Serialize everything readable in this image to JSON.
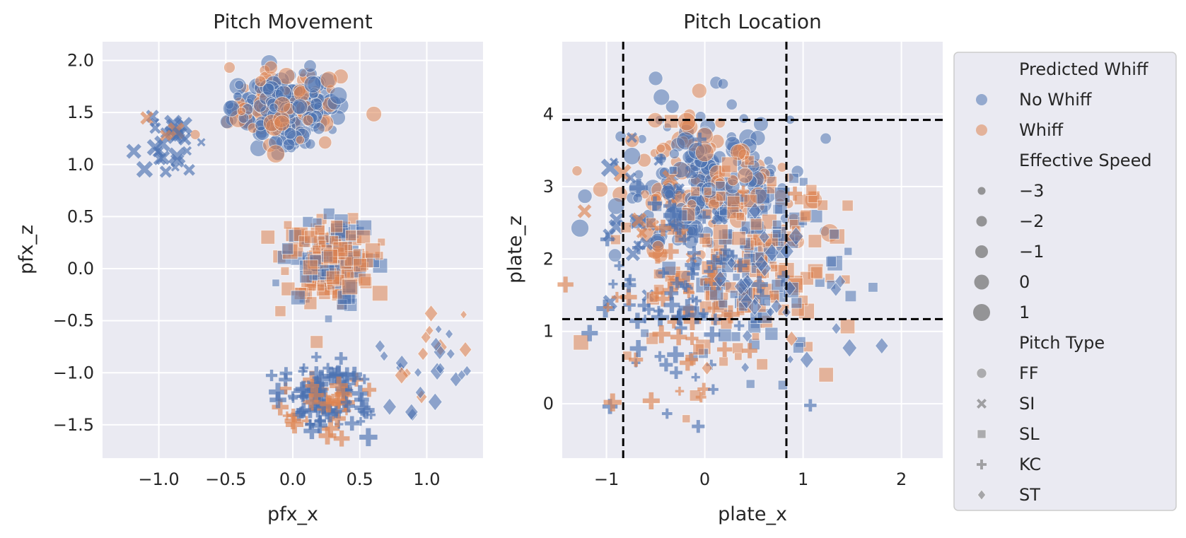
{
  "chart_data": [
    {
      "type": "scatter",
      "title": "Pitch Movement",
      "xlabel": "pfx_x",
      "ylabel": "pfx_z",
      "xlim": [
        -1.42,
        1.42
      ],
      "ylim": [
        -1.82,
        2.18
      ],
      "xticks": [
        -1.0,
        -0.5,
        0.0,
        0.5,
        1.0
      ],
      "xtick_labels": [
        "−1.0",
        "−0.5",
        "0.0",
        "0.5",
        "1.0"
      ],
      "yticks": [
        -1.5,
        -1.0,
        -0.5,
        0.0,
        0.5,
        1.0,
        1.5,
        2.0
      ],
      "ytick_labels": [
        "−1.5",
        "−1.0",
        "−0.5",
        "0.0",
        "0.5",
        "1.0",
        "1.5",
        "2.0"
      ],
      "grid": true,
      "clusters": [
        {
          "pitch_type": "FF",
          "n": 260,
          "cx": -0.05,
          "cy": 1.55,
          "sx": 0.2,
          "sy": 0.17,
          "whiff_share": 0.35
        },
        {
          "pitch_type": "SI",
          "n": 30,
          "cx": -0.98,
          "cy": 1.18,
          "sx": 0.14,
          "sy": 0.15,
          "whiff_share": 0.15
        },
        {
          "pitch_type": "SL",
          "n": 220,
          "cx": 0.27,
          "cy": 0.1,
          "sx": 0.16,
          "sy": 0.2,
          "whiff_share": 0.6
        },
        {
          "pitch_type": "KC",
          "n": 110,
          "cx": 0.22,
          "cy": -1.25,
          "sx": 0.17,
          "sy": 0.17,
          "whiff_share": 0.3
        },
        {
          "pitch_type": "ST",
          "n": 30,
          "cx": 1.0,
          "cy": -0.85,
          "sx": 0.18,
          "sy": 0.25,
          "whiff_share": 0.2
        }
      ]
    },
    {
      "type": "scatter",
      "title": "Pitch Location",
      "xlabel": "plate_x",
      "ylabel": "plate_z",
      "xlim": [
        -1.45,
        2.42
      ],
      "ylim": [
        -0.75,
        5.0
      ],
      "xticks": [
        -1,
        0,
        1,
        2
      ],
      "xtick_labels": [
        "−1",
        "0",
        "1",
        "2"
      ],
      "yticks": [
        0,
        1,
        2,
        3,
        4
      ],
      "ytick_labels": [
        "0",
        "1",
        "2",
        "3",
        "4"
      ],
      "grid": true,
      "strike_zone": {
        "x": [
          -0.83,
          0.83
        ],
        "z": [
          1.17,
          3.92
        ]
      },
      "clusters": [
        {
          "pitch_type": "FF",
          "n": 260,
          "cx": 0.05,
          "cy": 3.0,
          "sx": 0.45,
          "sy": 0.55,
          "whiff_share": 0.35
        },
        {
          "pitch_type": "SI",
          "n": 30,
          "cx": -0.6,
          "cy": 2.5,
          "sx": 0.3,
          "sy": 0.45,
          "whiff_share": 0.15
        },
        {
          "pitch_type": "SL",
          "n": 220,
          "cx": 0.4,
          "cy": 1.9,
          "sx": 0.5,
          "sy": 0.7,
          "whiff_share": 0.6
        },
        {
          "pitch_type": "KC",
          "n": 110,
          "cx": -0.2,
          "cy": 1.6,
          "sx": 0.45,
          "sy": 0.75,
          "whiff_share": 0.3
        },
        {
          "pitch_type": "ST",
          "n": 30,
          "cx": 0.6,
          "cy": 1.4,
          "sx": 0.55,
          "sy": 0.6,
          "whiff_share": 0.2
        }
      ]
    }
  ],
  "legend": {
    "placement": "right",
    "hue_title": "Predicted Whiff",
    "hue_items": [
      {
        "label": "No Whiff",
        "color": "#4c72b0"
      },
      {
        "label": "Whiff",
        "color": "#dd8452"
      }
    ],
    "size_title": "Effective Speed",
    "size_items": [
      "−3",
      "−2",
      "−1",
      "0",
      "1"
    ],
    "style_title": "Pitch Type",
    "style_items": [
      {
        "label": "FF",
        "marker": "circle"
      },
      {
        "label": "SI",
        "marker": "x"
      },
      {
        "label": "SL",
        "marker": "square"
      },
      {
        "label": "KC",
        "marker": "plus"
      },
      {
        "label": "ST",
        "marker": "diamond"
      }
    ]
  },
  "colors": {
    "axes_bg": "#eaeaf2",
    "grid": "#ffffff",
    "no_whiff": "#4c72b0",
    "whiff": "#dd8452",
    "zone_line": "#000000"
  }
}
